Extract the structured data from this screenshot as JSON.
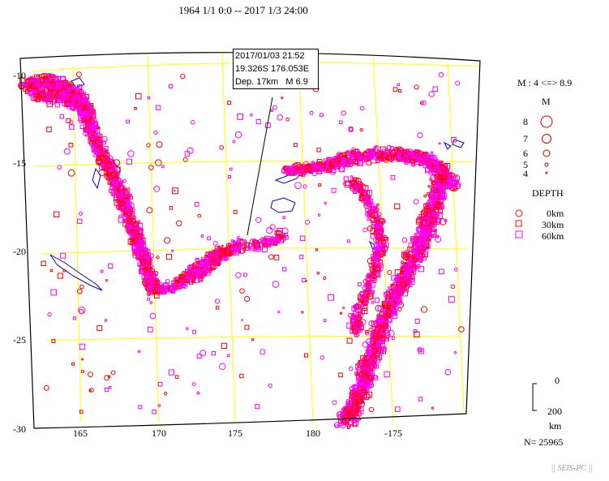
{
  "title": "1964 1/1 0:0 -- 2017 1/3 24:00",
  "map": {
    "lat_ticks": [
      "-10",
      "-15",
      "-20",
      "-25",
      "-30"
    ],
    "lon_ticks": [
      "165",
      "170",
      "175",
      "180",
      "-175"
    ],
    "colors": {
      "frame": "#000000",
      "grid": "#ffff00",
      "land": "#0000cc",
      "quake_shallow": "#ff0000",
      "quake_deep": "#ff00ff"
    }
  },
  "popup": {
    "date": "2017/01/03 21:52",
    "coords": "19.326S   176.053E",
    "depth": "Dep. 17km",
    "mag": "M 6.9"
  },
  "legend": {
    "mag_range": "M : 4 <=> 8.9",
    "mag_header": "M",
    "mags": [
      "8",
      "7",
      "6",
      "5",
      "4"
    ],
    "depth_header": "DEPTH",
    "depths": [
      "0km",
      "30km",
      "60km"
    ],
    "scale_top": "0",
    "scale_bottom": "200",
    "scale_unit": "km",
    "count": "N= 25965"
  },
  "footer": "|| SEIS-PC ||"
}
